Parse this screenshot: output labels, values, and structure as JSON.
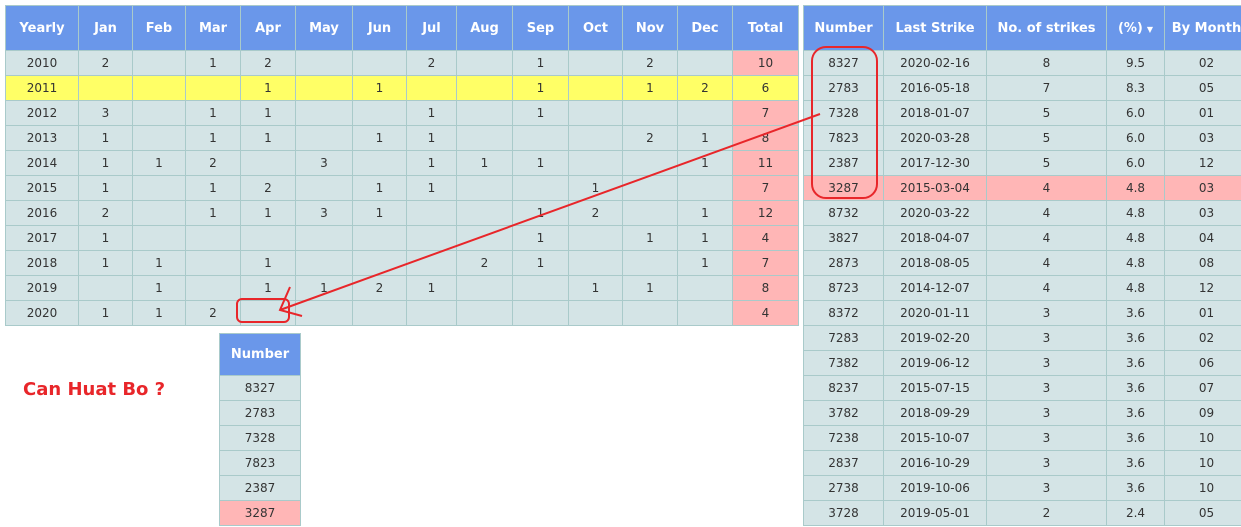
{
  "yearly": {
    "headers": [
      "Yearly",
      "Jan",
      "Feb",
      "Mar",
      "Apr",
      "May",
      "Jun",
      "Jul",
      "Aug",
      "Sep",
      "Oct",
      "Nov",
      "Dec",
      "Total"
    ],
    "highlight_year": "2011",
    "rows": [
      [
        "2010",
        "2",
        "",
        "1",
        "2",
        "",
        "",
        "2",
        "",
        "1",
        "",
        "2",
        "",
        "10"
      ],
      [
        "2011",
        "",
        "",
        "",
        "1",
        "",
        "1",
        "",
        "",
        "1",
        "",
        "1",
        "2",
        "6"
      ],
      [
        "2012",
        "3",
        "",
        "1",
        "1",
        "",
        "",
        "1",
        "",
        "1",
        "",
        "",
        "",
        "7"
      ],
      [
        "2013",
        "1",
        "",
        "1",
        "1",
        "",
        "1",
        "1",
        "",
        "",
        "",
        "2",
        "1",
        "8"
      ],
      [
        "2014",
        "1",
        "1",
        "2",
        "",
        "3",
        "",
        "1",
        "1",
        "1",
        "",
        "",
        "1",
        "11"
      ],
      [
        "2015",
        "1",
        "",
        "1",
        "2",
        "",
        "1",
        "1",
        "",
        "",
        "1",
        "",
        "",
        "7"
      ],
      [
        "2016",
        "2",
        "",
        "1",
        "1",
        "3",
        "1",
        "",
        "",
        "1",
        "2",
        "",
        "1",
        "12"
      ],
      [
        "2017",
        "1",
        "",
        "",
        "",
        "",
        "",
        "",
        "",
        "1",
        "",
        "1",
        "1",
        "4"
      ],
      [
        "2018",
        "1",
        "1",
        "",
        "1",
        "",
        "",
        "",
        "2",
        "1",
        "",
        "",
        "1",
        "7"
      ],
      [
        "2019",
        "",
        "1",
        "",
        "1",
        "1",
        "2",
        "1",
        "",
        "",
        "1",
        "1",
        "",
        "8"
      ],
      [
        "2020",
        "1",
        "1",
        "2",
        "",
        "",
        "",
        "",
        "",
        "",
        "",
        "",
        "",
        "4"
      ]
    ]
  },
  "strikes": {
    "headers": [
      "Number",
      "Last Strike",
      "No. of strikes",
      "(%)",
      "By Month"
    ],
    "sort_icon": "caret-down-icon",
    "highlight_number": "3287",
    "rows": [
      [
        "8327",
        "2020-02-16",
        "8",
        "9.5",
        "02"
      ],
      [
        "2783",
        "2016-05-18",
        "7",
        "8.3",
        "05"
      ],
      [
        "7328",
        "2018-01-07",
        "5",
        "6.0",
        "01"
      ],
      [
        "7823",
        "2020-03-28",
        "5",
        "6.0",
        "03"
      ],
      [
        "2387",
        "2017-12-30",
        "5",
        "6.0",
        "12"
      ],
      [
        "3287",
        "2015-03-04",
        "4",
        "4.8",
        "03"
      ],
      [
        "8732",
        "2020-03-22",
        "4",
        "4.8",
        "03"
      ],
      [
        "3827",
        "2018-04-07",
        "4",
        "4.8",
        "04"
      ],
      [
        "2873",
        "2018-08-05",
        "4",
        "4.8",
        "08"
      ],
      [
        "8723",
        "2014-12-07",
        "4",
        "4.8",
        "12"
      ],
      [
        "8372",
        "2020-01-11",
        "3",
        "3.6",
        "01"
      ],
      [
        "7283",
        "2019-02-20",
        "3",
        "3.6",
        "02"
      ],
      [
        "7382",
        "2019-06-12",
        "3",
        "3.6",
        "06"
      ],
      [
        "8237",
        "2015-07-15",
        "3",
        "3.6",
        "07"
      ],
      [
        "3782",
        "2018-09-29",
        "3",
        "3.6",
        "09"
      ],
      [
        "7238",
        "2015-10-07",
        "3",
        "3.6",
        "10"
      ],
      [
        "2837",
        "2016-10-29",
        "3",
        "3.6",
        "10"
      ],
      [
        "2738",
        "2019-10-06",
        "3",
        "3.6",
        "10"
      ],
      [
        "3728",
        "2019-05-01",
        "2",
        "2.4",
        "05"
      ]
    ]
  },
  "numbers": {
    "header": "Number",
    "rows": [
      "8327",
      "2783",
      "7328",
      "7823",
      "2387",
      "3287"
    ],
    "highlight": "3287"
  },
  "annotation": {
    "text": "Can Huat Bo ?",
    "color": "#e8262a"
  }
}
